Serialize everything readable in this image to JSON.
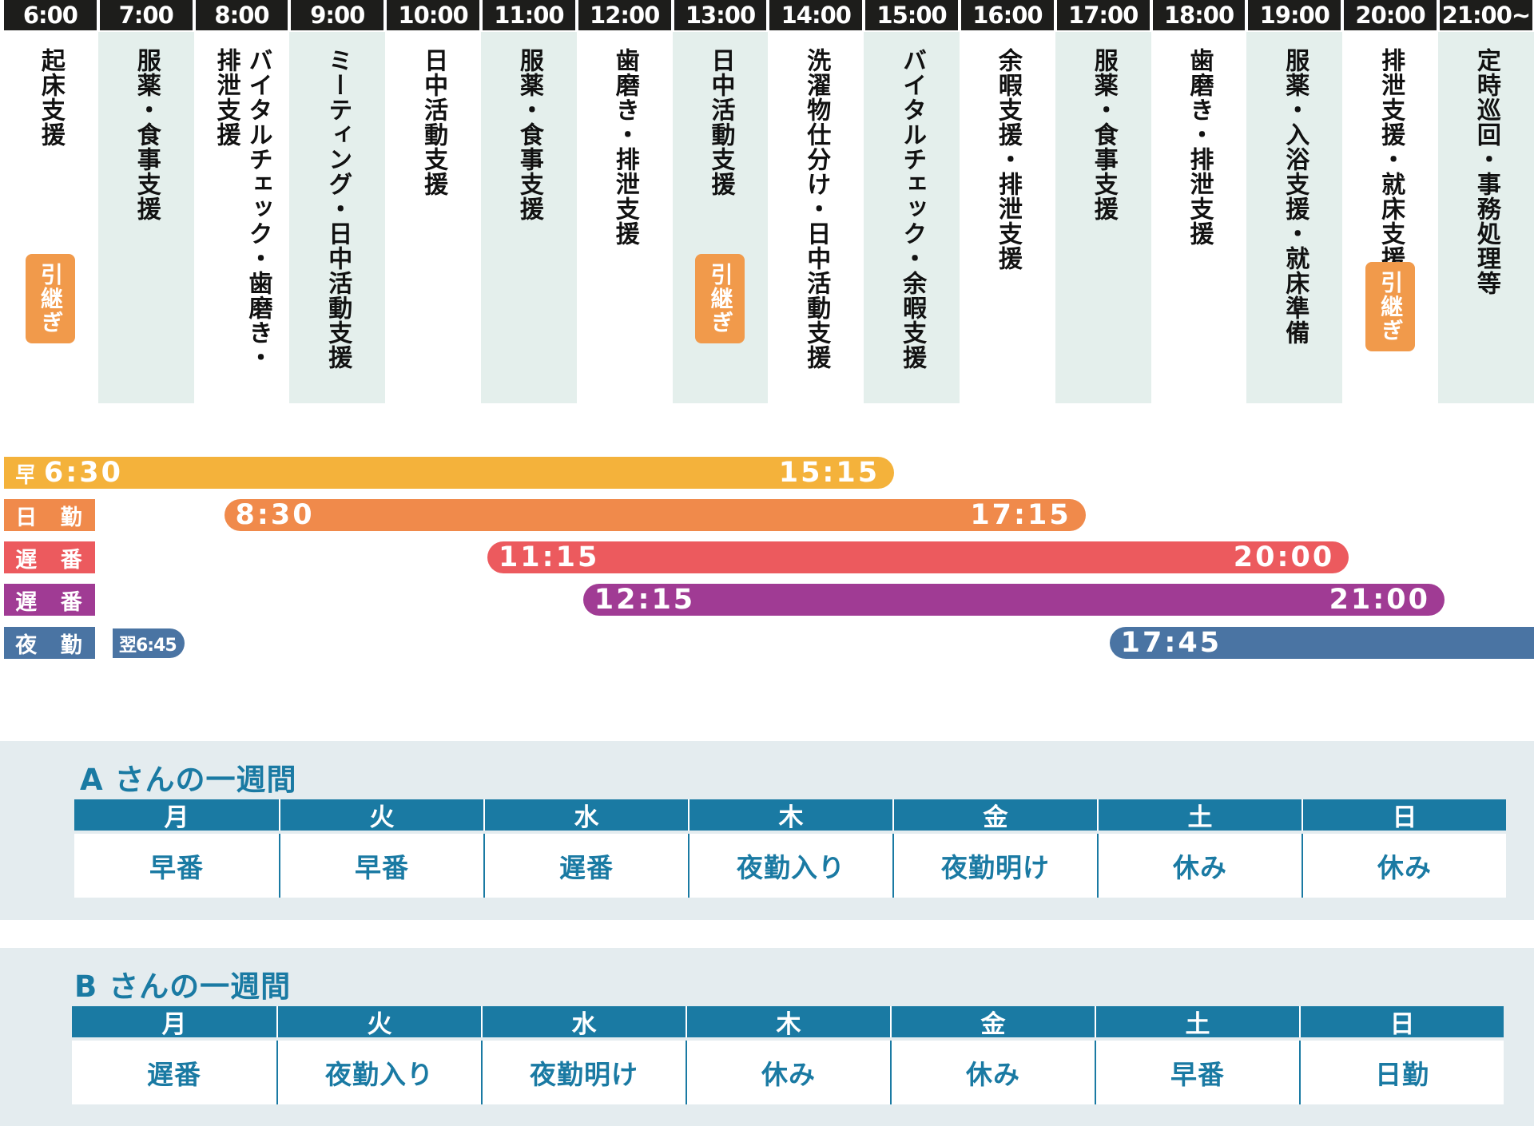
{
  "timeline": {
    "hours": [
      {
        "time": "6:00",
        "task": [
          "起床支援"
        ],
        "handover": "引継ぎ",
        "shaded": false
      },
      {
        "time": "7:00",
        "task": [
          "服薬・食事支援"
        ],
        "handover": null,
        "shaded": true
      },
      {
        "time": "8:00",
        "task": [
          "バイタルチェック・歯磨き・",
          "排泄支援"
        ],
        "handover": null,
        "shaded": false
      },
      {
        "time": "9:00",
        "task": [
          "ミーティング・日中活動支援"
        ],
        "handover": null,
        "shaded": true
      },
      {
        "time": "10:00",
        "task": [
          "日中活動支援"
        ],
        "handover": null,
        "shaded": false
      },
      {
        "time": "11:00",
        "task": [
          "服薬・食事支援"
        ],
        "handover": null,
        "shaded": true
      },
      {
        "time": "12:00",
        "task": [
          "歯磨き・排泄支援"
        ],
        "handover": null,
        "shaded": false
      },
      {
        "time": "13:00",
        "task": [
          "日中活動支援"
        ],
        "handover": "引継ぎ",
        "shaded": true
      },
      {
        "time": "14:00",
        "task": [
          "洗濯物仕分け・日中活動支援"
        ],
        "handover": null,
        "shaded": false
      },
      {
        "time": "15:00",
        "task": [
          "バイタルチェック・余暇支援"
        ],
        "handover": null,
        "shaded": true
      },
      {
        "time": "16:00",
        "task": [
          "余暇支援・排泄支援"
        ],
        "handover": null,
        "shaded": false
      },
      {
        "time": "17:00",
        "task": [
          "服薬・食事支援"
        ],
        "handover": null,
        "shaded": true
      },
      {
        "time": "18:00",
        "task": [
          "歯磨き・排泄支援"
        ],
        "handover": null,
        "shaded": false
      },
      {
        "time": "19:00",
        "task": [
          "服薬・入浴支援・就床準備"
        ],
        "handover": null,
        "shaded": true
      },
      {
        "time": "20:00",
        "task": [
          "排泄支援・就床支援"
        ],
        "handover": "引継ぎ",
        "shaded": false
      },
      {
        "time": "21:00~",
        "task": [
          "定時巡回・事務処理等"
        ],
        "handover": null,
        "shaded": true
      }
    ]
  },
  "shifts": [
    {
      "label": "早 番",
      "start": "6:30",
      "end": "15:15",
      "color": "#f4b23b"
    },
    {
      "label": "日 勤",
      "start": "8:30",
      "end": "17:15",
      "color": "#f08a4b"
    },
    {
      "label": "遅 番",
      "start": "11:15",
      "end": "20:00",
      "color": "#ec5a5e"
    },
    {
      "label": "遅 番",
      "start": "12:15",
      "end": "21:00",
      "color": "#a03b94"
    },
    {
      "label": "夜 勤",
      "start": "17:45",
      "end": "翌6:45",
      "color": "#4a74a3"
    }
  ],
  "weeks": [
    {
      "title": "A さんの一週間",
      "days": [
        "月",
        "火",
        "水",
        "木",
        "金",
        "土",
        "日"
      ],
      "values": [
        "早番",
        "早番",
        "遅番",
        "夜勤入り",
        "夜勤明け",
        "休み",
        "休み"
      ]
    },
    {
      "title": "B さんの一週間",
      "days": [
        "月",
        "火",
        "水",
        "木",
        "金",
        "土",
        "日"
      ],
      "values": [
        "遅番",
        "夜勤入り",
        "夜勤明け",
        "休み",
        "休み",
        "早番",
        "日勤"
      ]
    }
  ]
}
